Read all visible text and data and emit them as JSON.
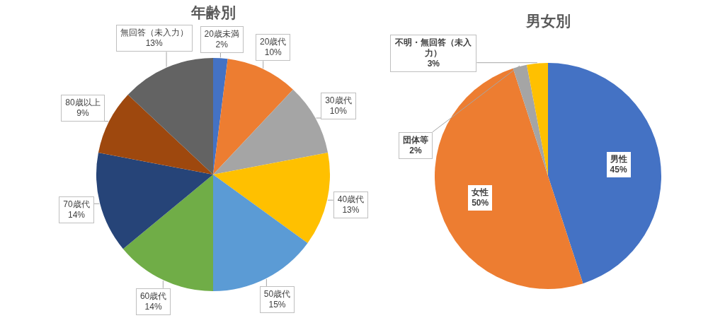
{
  "chart_data": [
    {
      "type": "pie",
      "title": "年齢別",
      "categories": [
        "20歳未満",
        "20歳代",
        "30歳代",
        "40歳代",
        "50歳代",
        "60歳代",
        "70歳代",
        "80歳以上",
        "無回答（未入力）"
      ],
      "values": [
        2,
        10,
        10,
        13,
        15,
        14,
        14,
        9,
        13
      ],
      "colors": [
        "#4472c4",
        "#ed7d31",
        "#a5a5a5",
        "#ffc000",
        "#5b9bd5",
        "#70ad47",
        "#264478",
        "#9e480e",
        "#636363"
      ],
      "value_labels": [
        "2%",
        "10%",
        "10%",
        "13%",
        "15%",
        "14%",
        "14%",
        "9%",
        "13%"
      ]
    },
    {
      "type": "pie",
      "title": "男女別",
      "categories": [
        "男性",
        "女性",
        "団体等",
        "不明・無回答（未入力）"
      ],
      "values": [
        45,
        50,
        2,
        3
      ],
      "colors": [
        "#4472c4",
        "#ed7d31",
        "#a5a5a5",
        "#ffc000"
      ],
      "value_labels": [
        "45%",
        "50%",
        "2%",
        "3%"
      ]
    }
  ]
}
